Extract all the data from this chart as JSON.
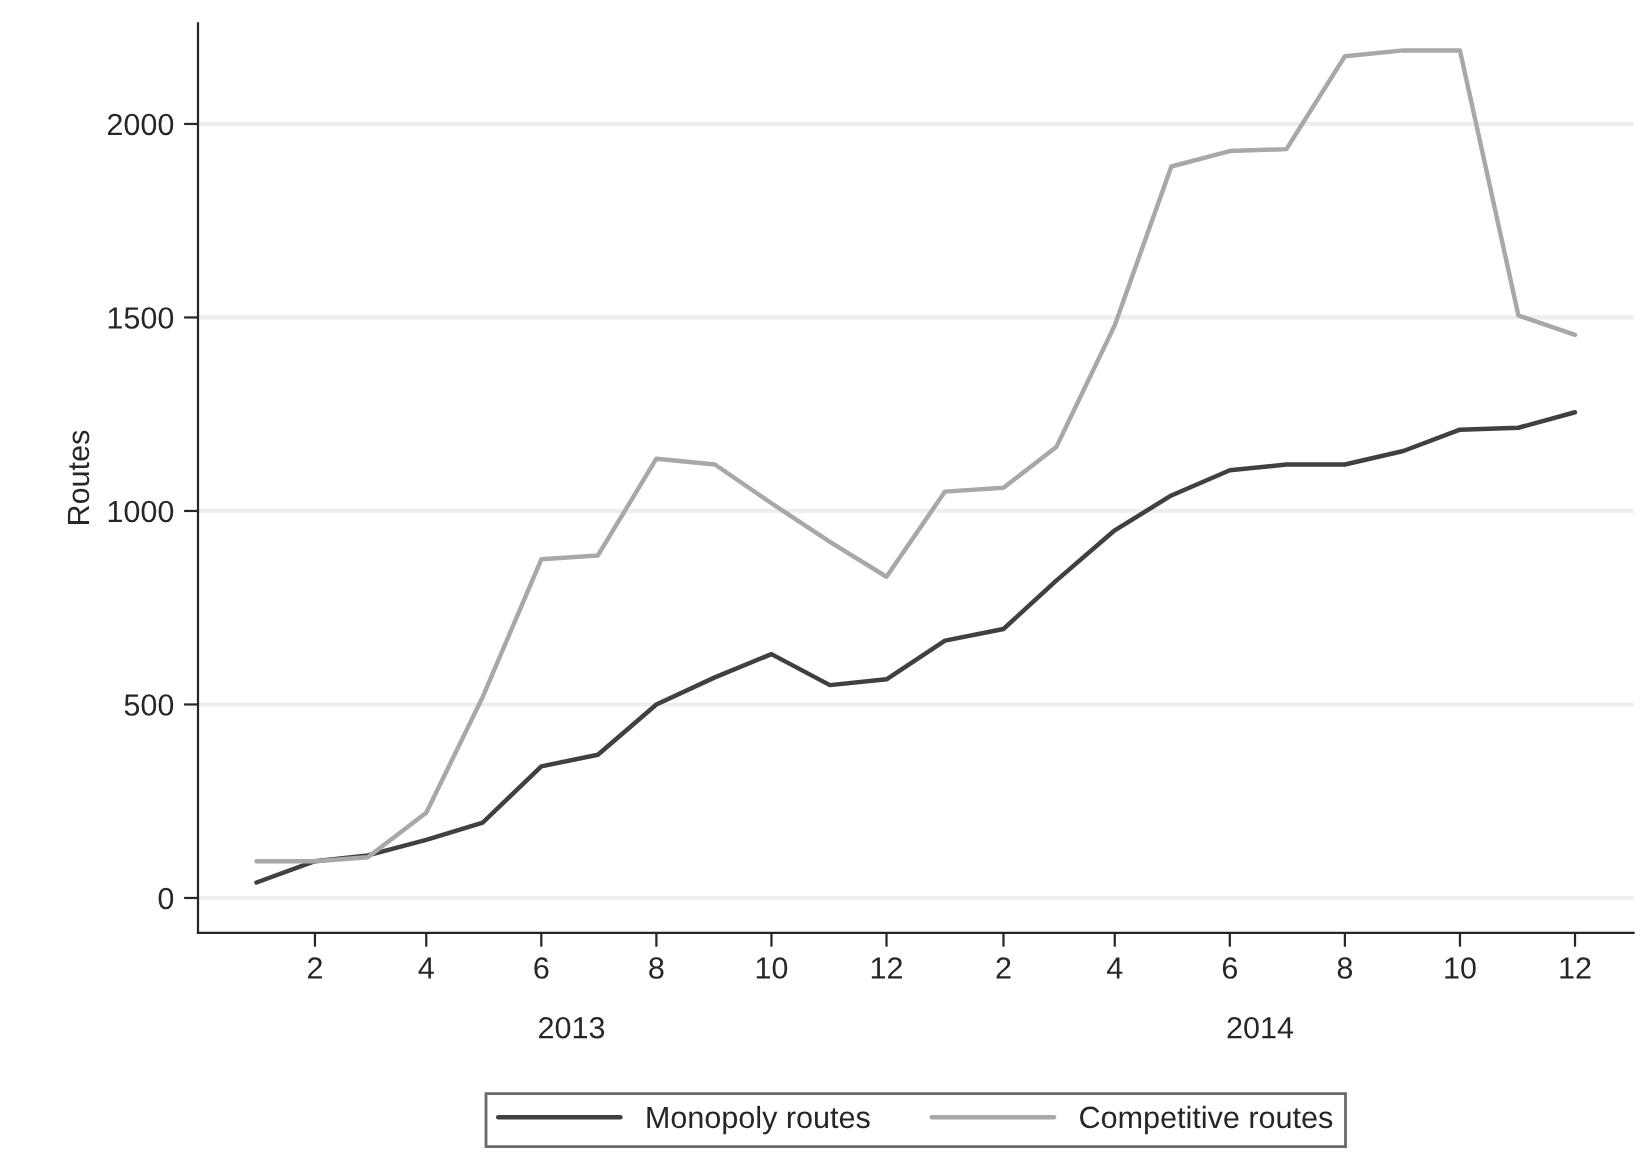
{
  "chart_data": {
    "type": "line",
    "ylabel": "Routes",
    "x": [
      "2013-01",
      "2013-02",
      "2013-03",
      "2013-04",
      "2013-05",
      "2013-06",
      "2013-07",
      "2013-08",
      "2013-09",
      "2013-10",
      "2013-11",
      "2013-12",
      "2014-01",
      "2014-02",
      "2014-03",
      "2014-04",
      "2014-05",
      "2014-06",
      "2014-07",
      "2014-08",
      "2014-09",
      "2014-10",
      "2014-11",
      "2014-12"
    ],
    "series": [
      {
        "name": "Monopoly routes",
        "color": "#404040",
        "values": [
          40,
          95,
          110,
          150,
          195,
          340,
          370,
          500,
          570,
          630,
          550,
          565,
          665,
          695,
          820,
          950,
          1040,
          1105,
          1120,
          1120,
          1155,
          1210,
          1215,
          1255
        ]
      },
      {
        "name": "Competitive routes",
        "color": "#a8a8a8",
        "values": [
          95,
          95,
          105,
          220,
          520,
          875,
          885,
          1135,
          1120,
          1020,
          920,
          830,
          1050,
          1060,
          1165,
          1480,
          1890,
          1930,
          1935,
          2175,
          2190,
          2190,
          1505,
          1455
        ]
      }
    ],
    "xlim": [
      "2012-12",
      "2015-01"
    ],
    "xticks": [
      {
        "value": "2013-02",
        "label": "2"
      },
      {
        "value": "2013-04",
        "label": "4"
      },
      {
        "value": "2013-06",
        "label": "6"
      },
      {
        "value": "2013-08",
        "label": "8"
      },
      {
        "value": "2013-10",
        "label": "10"
      },
      {
        "value": "2013-12",
        "label": "12"
      },
      {
        "value": "2014-02",
        "label": "2"
      },
      {
        "value": "2014-04",
        "label": "4"
      },
      {
        "value": "2014-06",
        "label": "6"
      },
      {
        "value": "2014-08",
        "label": "8"
      },
      {
        "value": "2014-10",
        "label": "10"
      },
      {
        "value": "2014-12",
        "label": "12"
      }
    ],
    "ylim": [
      -90,
      2260
    ],
    "yticks": [
      0,
      500,
      1000,
      1500,
      2000
    ],
    "annotations": [
      "2013",
      "2014"
    ],
    "grid": "y",
    "legend": "bottom",
    "marker": "none",
    "line_style": "solid"
  }
}
